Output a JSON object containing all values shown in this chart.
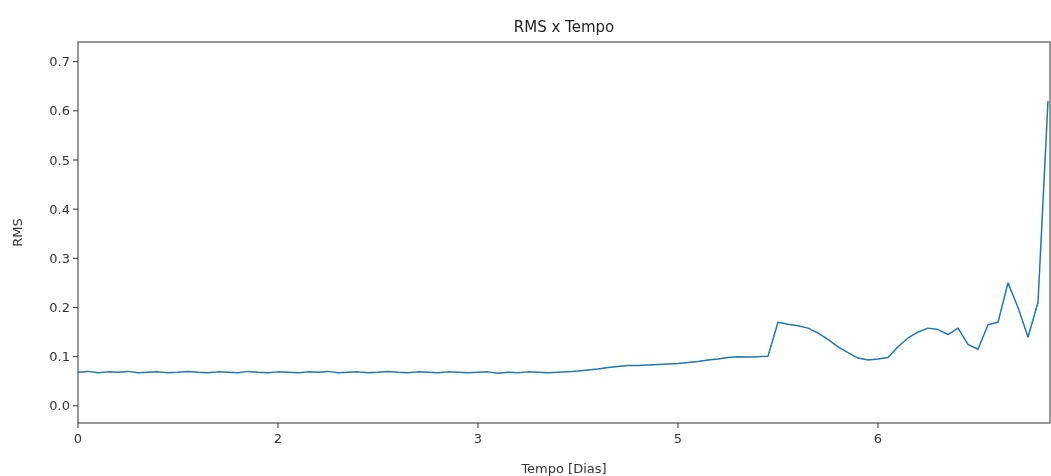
{
  "chart_data": {
    "type": "line",
    "title": "RMS x Tempo",
    "xlabel": "Tempo [Dias]",
    "ylabel": "RMS",
    "categories": [
      "0",
      null,
      null,
      null,
      null,
      null,
      null,
      null,
      null,
      null,
      null,
      null,
      null,
      null,
      null,
      null,
      null,
      null,
      null,
      null,
      "2",
      null,
      null,
      null,
      null,
      null,
      null,
      null,
      null,
      null,
      null,
      null,
      null,
      null,
      null,
      null,
      null,
      null,
      null,
      null,
      "3",
      null,
      null,
      null,
      null,
      null,
      null,
      null,
      null,
      null,
      null,
      null,
      null,
      null,
      null,
      null,
      null,
      null,
      null,
      null,
      "5",
      null,
      null,
      null,
      null,
      null,
      null,
      null,
      null,
      null,
      null,
      null,
      null,
      null,
      null,
      null,
      null,
      null,
      null,
      null,
      "6",
      null,
      null,
      null,
      null,
      null,
      null,
      null,
      null,
      null,
      null,
      null,
      null,
      null,
      null,
      null,
      null,
      null
    ],
    "series": [
      {
        "color": "#1f77b4",
        "values": [
          0.068,
          0.07,
          0.067,
          0.069,
          0.068,
          0.07,
          0.067,
          0.068,
          0.069,
          0.067,
          0.068,
          0.07,
          0.068,
          0.067,
          0.069,
          0.068,
          0.067,
          0.07,
          0.068,
          0.067,
          0.069,
          0.068,
          0.067,
          0.069,
          0.068,
          0.07,
          0.067,
          0.068,
          0.069,
          0.067,
          0.068,
          0.07,
          0.068,
          0.067,
          0.069,
          0.068,
          0.067,
          0.069,
          0.068,
          0.067,
          0.068,
          0.069,
          0.066,
          0.068,
          0.067,
          0.069,
          0.068,
          0.067,
          0.068,
          0.069,
          0.071,
          0.073,
          0.075,
          0.078,
          0.08,
          0.082,
          0.082,
          0.083,
          0.084,
          0.085,
          0.086,
          0.088,
          0.09,
          0.093,
          0.095,
          0.098,
          0.1,
          0.099,
          0.1,
          0.101,
          0.17,
          0.166,
          0.163,
          0.158,
          0.148,
          0.135,
          0.12,
          0.108,
          0.097,
          0.093,
          0.095,
          0.098,
          0.12,
          0.138,
          0.15,
          0.158,
          0.155,
          0.145,
          0.158,
          0.125,
          0.115,
          0.165,
          0.17,
          0.25,
          0.2,
          0.14,
          0.21,
          0.62
        ]
      }
    ],
    "ylim": [
      -0.035,
      0.74
    ],
    "yticks": [
      {
        "value": 0,
        "label": "0.0"
      },
      {
        "value": 0.1,
        "label": "0.1"
      },
      {
        "value": 0.2,
        "label": "0.2"
      },
      {
        "value": 0.3,
        "label": "0.3"
      },
      {
        "value": 0.4,
        "label": "0.4"
      },
      {
        "value": 0.5,
        "label": "0.5"
      },
      {
        "value": 0.6,
        "label": "0.6"
      },
      {
        "value": 0.7,
        "label": "0.7"
      }
    ],
    "grid": false
  }
}
